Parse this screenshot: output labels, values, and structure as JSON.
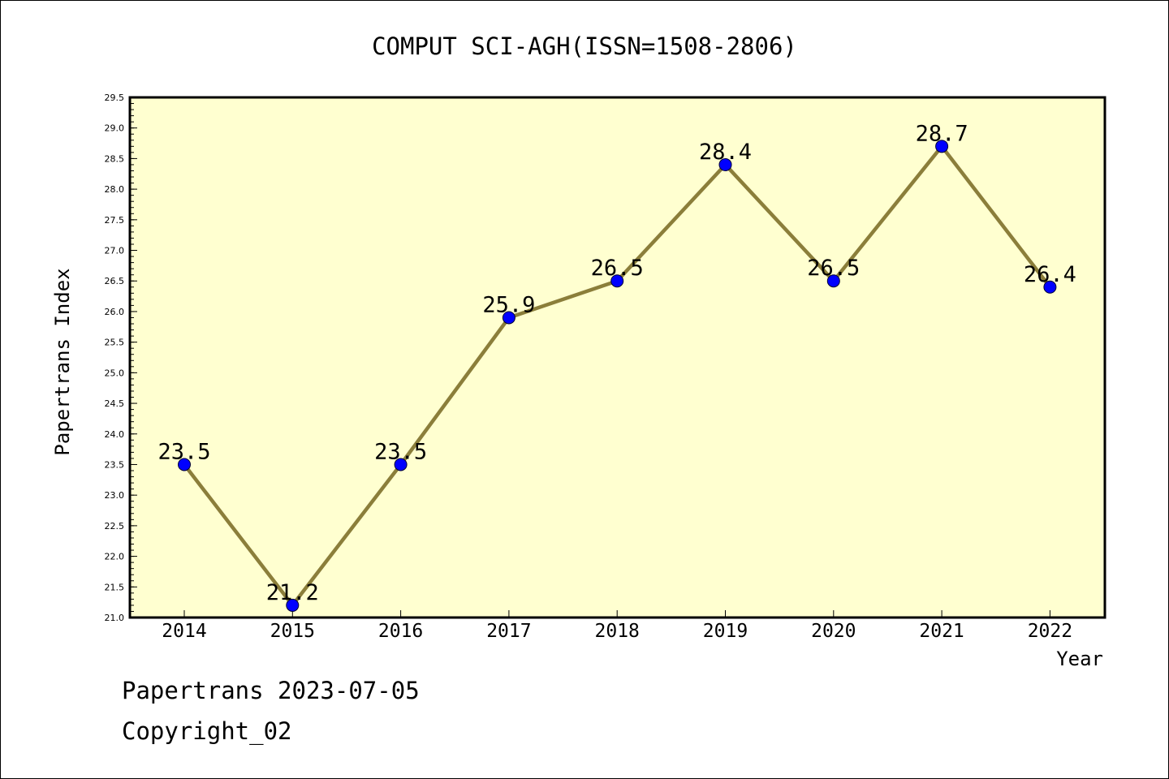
{
  "chart_data": {
    "type": "line",
    "title": "COMPUT SCI-AGH(ISSN=1508-2806)",
    "xlabel": "Year",
    "ylabel": "Papertrans Index",
    "categories": [
      "2014",
      "2015",
      "2016",
      "2017",
      "2018",
      "2019",
      "2020",
      "2021",
      "2022"
    ],
    "values": [
      23.5,
      21.2,
      23.5,
      25.9,
      26.5,
      28.4,
      26.5,
      28.7,
      26.4
    ],
    "data_labels": [
      "23.5",
      "21.2",
      "23.5",
      "25.9",
      "26.5",
      "28.4",
      "26.5",
      "28.7",
      "26.4"
    ],
    "ylim": [
      21.0,
      29.5
    ],
    "yticks": [
      "21.0",
      "21.5",
      "22.0",
      "22.5",
      "23.0",
      "23.5",
      "24.0",
      "24.5",
      "25.0",
      "25.5",
      "26.0",
      "26.5",
      "27.0",
      "27.5",
      "28.0",
      "28.5",
      "29.0",
      "29.5"
    ],
    "grid": false,
    "legend": "none",
    "colors": {
      "plot_background": "#ffffd0",
      "line": "#8b7e3a",
      "marker": "#0000ff"
    }
  },
  "footer": {
    "date_line": "Papertrans 2023-07-05",
    "copyright_line": "Copyright_02"
  }
}
